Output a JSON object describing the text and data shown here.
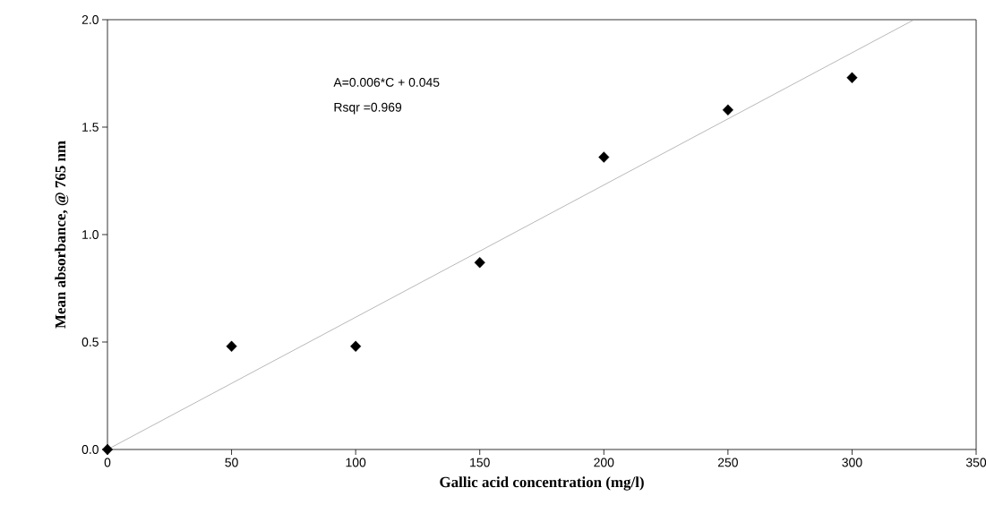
{
  "chart_data": {
    "type": "scatter",
    "xlabel": "Gallic acid concentration (mg/l)",
    "ylabel": "Mean absorbance, @ 765 nm",
    "xlim": [
      0,
      350
    ],
    "ylim": [
      0,
      2.0
    ],
    "xticks": [
      0,
      50,
      100,
      150,
      200,
      250,
      300,
      350
    ],
    "yticks": [
      {
        "value": 0,
        "label": "0.0"
      },
      {
        "value": 0.5,
        "label": "0.5"
      },
      {
        "value": 1.0,
        "label": "1.0"
      },
      {
        "value": 1.5,
        "label": "1.5"
      },
      {
        "value": 2.0,
        "label": "2.0"
      }
    ],
    "series": [
      {
        "marker": "diamond",
        "color": "#000000",
        "x": [
          0,
          50,
          100,
          150,
          200,
          250,
          300
        ],
        "values": [
          0.0,
          0.48,
          0.48,
          0.87,
          1.36,
          1.58,
          1.73
        ]
      },
      {
        "type": "line",
        "color": "#999999",
        "line_style": "solid",
        "x": [
          0,
          325
        ],
        "values": [
          0.0,
          2.0
        ]
      }
    ],
    "annotations": [
      "A=0.006*C + 0.045",
      "Rsqr =0.969"
    ]
  }
}
